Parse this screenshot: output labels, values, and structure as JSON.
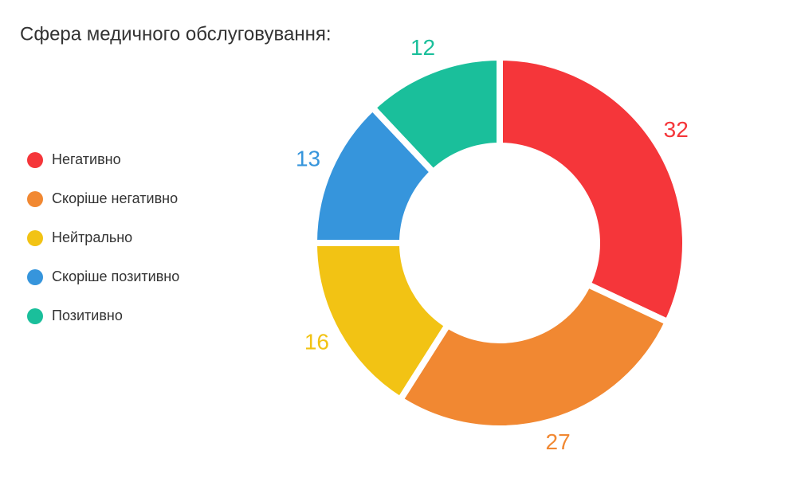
{
  "chart_data": {
    "type": "donut",
    "title": "Сфера медичного обслуговування:",
    "categories": [
      "Негативно",
      "Скоріше негативно",
      "Нейтрально",
      "Скоріше позитивно",
      "Позитивно"
    ],
    "values": [
      32,
      27,
      16,
      13,
      12
    ],
    "colors": [
      "#f5363a",
      "#f18832",
      "#f2c314",
      "#3695dc",
      "#1abf9b"
    ],
    "legend": "left"
  }
}
